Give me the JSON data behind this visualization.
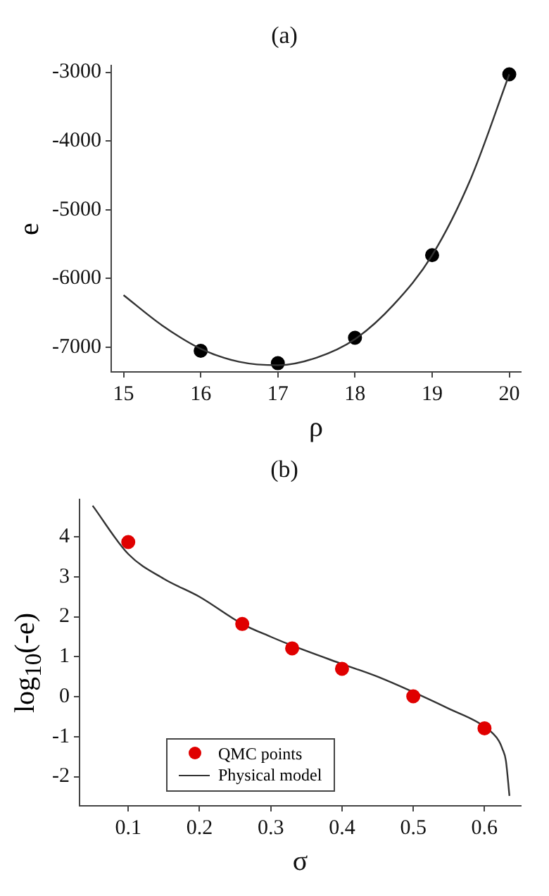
{
  "chart_data": [
    {
      "type": "scatter",
      "title": "(a)",
      "xlabel": "ρ",
      "ylabel": "e",
      "xlim": [
        14.84,
        20.15
      ],
      "ylim": [
        -7357,
        -2900
      ],
      "xticks": [
        15,
        16,
        17,
        18,
        19,
        20
      ],
      "yticks": [
        -7000,
        -6000,
        -5000,
        -4000,
        -3000
      ],
      "grid": false,
      "legend": false,
      "series": [
        {
          "type": "line",
          "color": "#333333",
          "marker": "none",
          "x": [
            15,
            15.5,
            16,
            16.5,
            17,
            17.5,
            18,
            18.5,
            19,
            19.5,
            20
          ],
          "values": [
            -6240,
            -6680,
            -7020,
            -7210,
            -7260,
            -7150,
            -6880,
            -6380,
            -5660,
            -4550,
            -3030
          ]
        },
        {
          "type": "scatter",
          "color": "#000000",
          "marker": "circle",
          "x": [
            16,
            17,
            18,
            19,
            20
          ],
          "values": [
            -7050,
            -7230,
            -6860,
            -5660,
            -3030
          ]
        }
      ]
    },
    {
      "type": "scatter",
      "title": "(b)",
      "xlabel": "σ",
      "ylabel": "log$_{10}$(-e)",
      "xlim": [
        0.0316,
        0.651
      ],
      "ylim": [
        -2.73,
        4.94
      ],
      "xticks": [
        0.1,
        0.2,
        0.3,
        0.4,
        0.5,
        0.6
      ],
      "yticks": [
        -2,
        -1,
        0,
        1,
        2,
        3,
        4
      ],
      "grid": false,
      "legend": "bottom left",
      "series": [
        {
          "name": "QMC points",
          "type": "scatter",
          "color": "#e00000",
          "marker": "circle",
          "x": [
            0.1,
            0.26,
            0.33,
            0.4,
            0.5,
            0.6
          ],
          "values": [
            3.87,
            1.82,
            1.21,
            0.7,
            0.01,
            -0.79
          ]
        },
        {
          "name": "Physical model",
          "type": "line",
          "color": "#333333",
          "marker": "none",
          "x": [
            0.05,
            0.1,
            0.15,
            0.2,
            0.26,
            0.3,
            0.33,
            0.4,
            0.45,
            0.55,
            0.6,
            0.62,
            0.625,
            0.63,
            0.635
          ],
          "values": [
            4.78,
            3.57,
            2.95,
            2.5,
            1.82,
            1.5,
            1.28,
            0.82,
            0.5,
            -0.3,
            -0.75,
            -1.1,
            -1.3,
            -1.6,
            -2.48
          ]
        }
      ]
    }
  ]
}
